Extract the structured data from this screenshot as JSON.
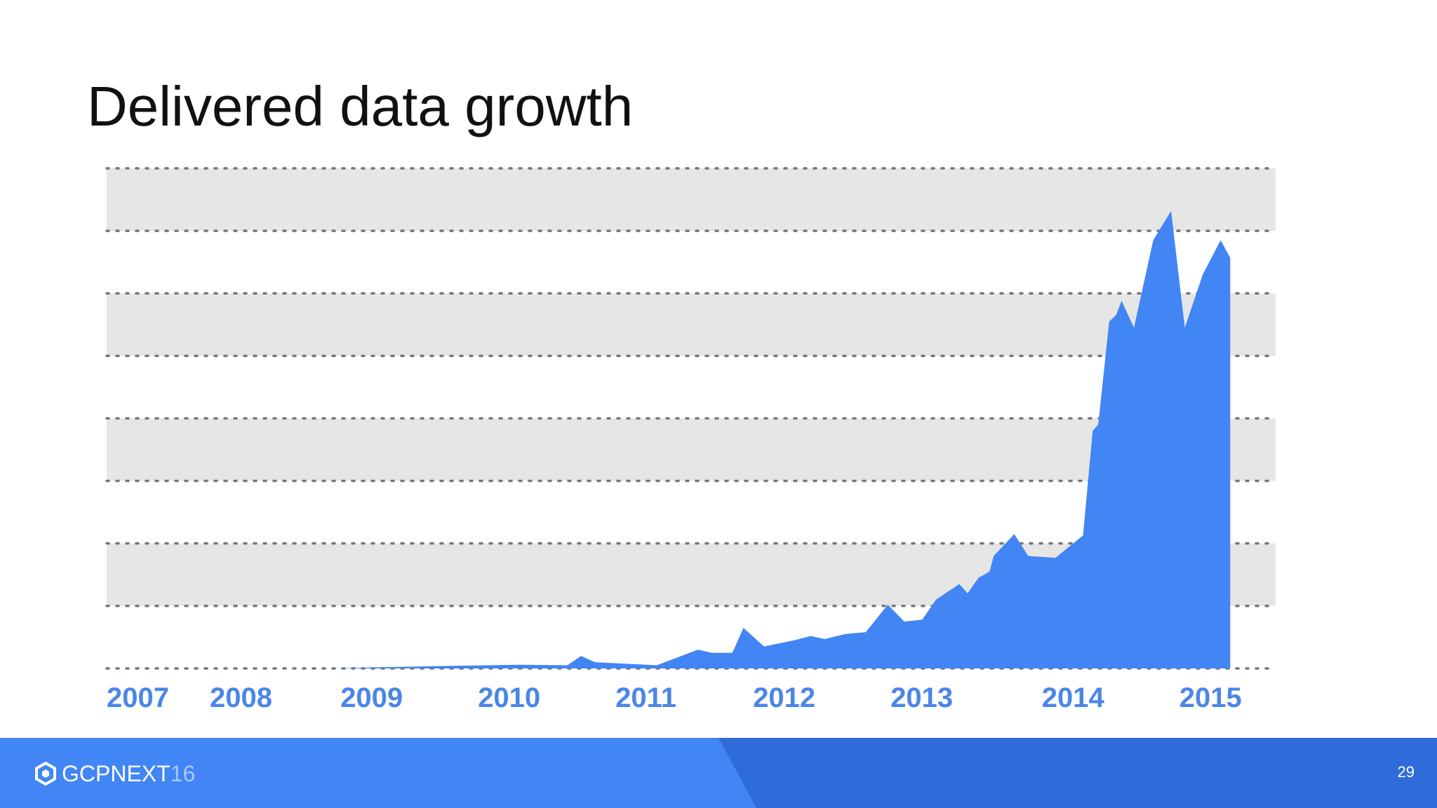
{
  "slide": {
    "title": "Delivered data growth",
    "page_number": "29"
  },
  "footer": {
    "brand_main": "GCPNEXT",
    "brand_num": "16",
    "icon": "google-cloud-hexagon-icon"
  },
  "colors": {
    "area": "#4285f4",
    "tick_label": "#4a86e8",
    "band": "#e6e6e6",
    "gridline": "#777777",
    "footer": "#4285f4",
    "footer_dark": "#2f6bd9"
  },
  "chart_data": {
    "type": "area",
    "title": "Delivered data growth",
    "xlabel": "",
    "ylabel": "",
    "xlim": [
      2007.0,
      2015.5
    ],
    "ylim": [
      0,
      8
    ],
    "y_ticks_labeled": false,
    "grid": "dotted horizontal lines with alternating shaded bands",
    "legend": "none",
    "x_tick_labels": [
      "2007",
      "2008",
      "2009",
      "2010",
      "2011",
      "2012",
      "2013",
      "2014",
      "2015"
    ],
    "x_tick_positions": [
      2007.0,
      2007.75,
      2008.7,
      2009.7,
      2010.7,
      2011.7,
      2012.7,
      2013.8,
      2014.8
    ],
    "series": [
      {
        "values": [
          [
            2008.65,
            0.0
          ],
          [
            2009.0,
            0.02
          ],
          [
            2009.5,
            0.04
          ],
          [
            2010.0,
            0.06
          ],
          [
            2010.35,
            0.05
          ],
          [
            2010.45,
            0.2
          ],
          [
            2010.55,
            0.1
          ],
          [
            2011.0,
            0.05
          ],
          [
            2011.3,
            0.3
          ],
          [
            2011.4,
            0.25
          ],
          [
            2011.55,
            0.25
          ],
          [
            2011.63,
            0.65
          ],
          [
            2011.78,
            0.35
          ],
          [
            2012.0,
            0.45
          ],
          [
            2012.12,
            0.52
          ],
          [
            2012.22,
            0.47
          ],
          [
            2012.37,
            0.55
          ],
          [
            2012.52,
            0.58
          ],
          [
            2012.68,
            1.02
          ],
          [
            2012.8,
            0.75
          ],
          [
            2012.93,
            0.78
          ],
          [
            2013.03,
            1.1
          ],
          [
            2013.2,
            1.35
          ],
          [
            2013.26,
            1.2
          ],
          [
            2013.34,
            1.45
          ],
          [
            2013.42,
            1.55
          ],
          [
            2013.45,
            1.8
          ],
          [
            2013.6,
            2.15
          ],
          [
            2013.7,
            1.8
          ],
          [
            2013.9,
            1.77
          ],
          [
            2014.1,
            2.13
          ],
          [
            2014.17,
            3.8
          ],
          [
            2014.21,
            3.9
          ],
          [
            2014.29,
            5.55
          ],
          [
            2014.34,
            5.65
          ],
          [
            2014.38,
            5.88
          ],
          [
            2014.47,
            5.45
          ],
          [
            2014.61,
            6.85
          ],
          [
            2014.74,
            7.32
          ],
          [
            2014.84,
            5.45
          ],
          [
            2014.97,
            6.3
          ],
          [
            2015.1,
            6.85
          ],
          [
            2015.17,
            6.57
          ],
          [
            2015.17,
            0.0
          ]
        ]
      }
    ]
  }
}
